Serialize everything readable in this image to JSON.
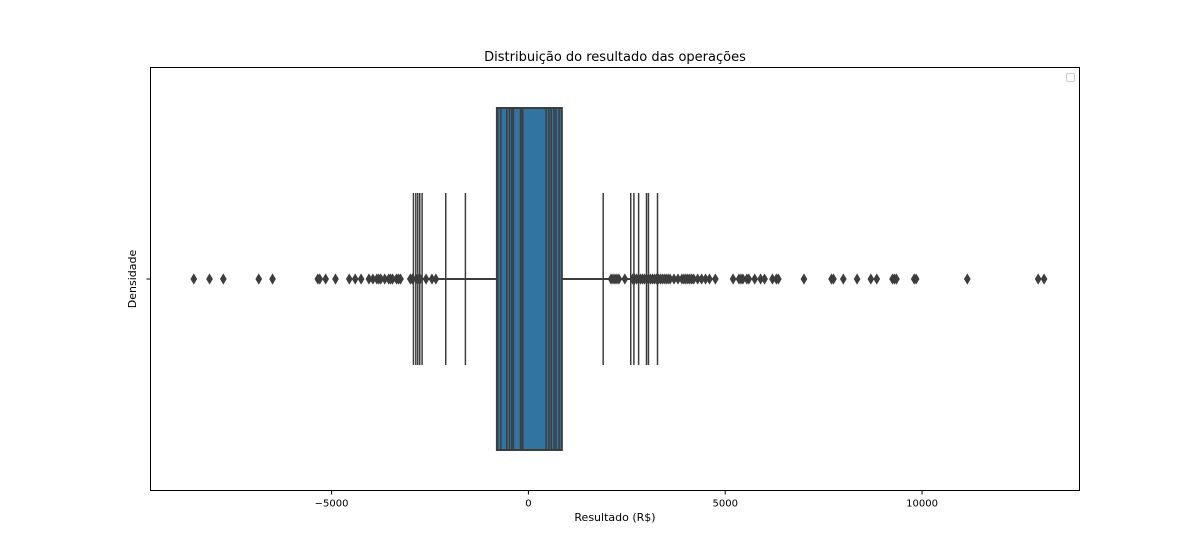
{
  "chart_data": {
    "type": "box",
    "orientation": "horizontal",
    "title": "Distribuição do resultado das operações",
    "xlabel": "Resultado (R$)",
    "ylabel": "Densidade",
    "xlim": [
      -9600,
      14000
    ],
    "xticks": [
      -5000,
      0,
      5000,
      10000
    ],
    "xtick_labels": [
      "−5000",
      "0",
      "5000",
      "10000"
    ],
    "y_categories": [
      ""
    ],
    "legend": {
      "placement": "top-right",
      "entries": []
    },
    "grid": false,
    "box_color": "#3274a1",
    "line_color": "#3d3d3d",
    "boxplot": {
      "q1": -800,
      "median": -150,
      "q3": 850,
      "whisker_low": -2700,
      "whisker_high": 2600,
      "box_stripes": [
        -780,
        -700,
        -550,
        -480,
        -420,
        -380,
        -200,
        450,
        520,
        580,
        650,
        700,
        780
      ],
      "cap_lines": [
        -2920,
        -2860,
        -2810,
        -2760,
        -2700,
        -2100,
        -1600,
        1900,
        2600,
        2680,
        2800,
        3000,
        3050,
        3280
      ],
      "outliers": [
        -8500,
        -8100,
        -7750,
        -6850,
        -6500,
        -5350,
        -5300,
        -5150,
        -4900,
        -4550,
        -4400,
        -4250,
        -4050,
        -3950,
        -3850,
        -3800,
        -3750,
        -3650,
        -3550,
        -3500,
        -3450,
        -3350,
        -3300,
        -3250,
        -3000,
        -2950,
        -2850,
        -2800,
        -2750,
        -2600,
        -2450,
        -2350,
        2100,
        2150,
        2200,
        2250,
        2300,
        2450,
        2650,
        2700,
        2750,
        2800,
        2850,
        2900,
        2950,
        3000,
        3050,
        3100,
        3150,
        3200,
        3250,
        3300,
        3350,
        3400,
        3450,
        3500,
        3550,
        3600,
        3700,
        3800,
        3900,
        3950,
        4000,
        4050,
        4100,
        4150,
        4200,
        4300,
        4400,
        4500,
        4600,
        4750,
        5200,
        5350,
        5400,
        5450,
        5550,
        5600,
        5750,
        5900,
        6000,
        6200,
        6300,
        6350,
        7000,
        7700,
        7750,
        8000,
        8350,
        8700,
        8850,
        9250,
        9300,
        9350,
        9800,
        9850,
        11150,
        12950,
        13100
      ]
    }
  }
}
